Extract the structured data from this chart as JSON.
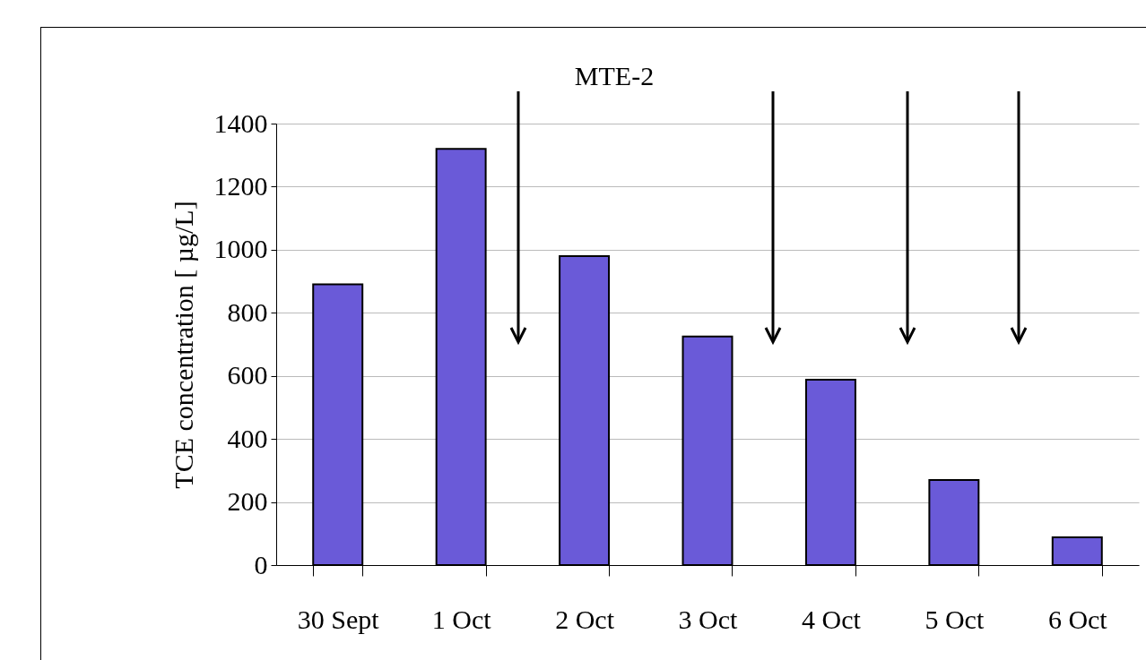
{
  "chart_data": {
    "type": "bar",
    "ylabel": "TCE concentration [ µg/L]",
    "categories": [
      "30 Sept",
      "1 Oct",
      "2 Oct",
      "3 Oct",
      "4 Oct",
      "5 Oct",
      "6 Oct"
    ],
    "values": [
      890,
      1320,
      980,
      725,
      588,
      270,
      88
    ],
    "color": "#6a5ad8",
    "ylim": [
      0,
      1400
    ],
    "yticks": [
      0,
      200,
      400,
      600,
      800,
      1000,
      1200,
      1400
    ],
    "grid": "y",
    "annotations": [
      "MTE-2"
    ]
  }
}
